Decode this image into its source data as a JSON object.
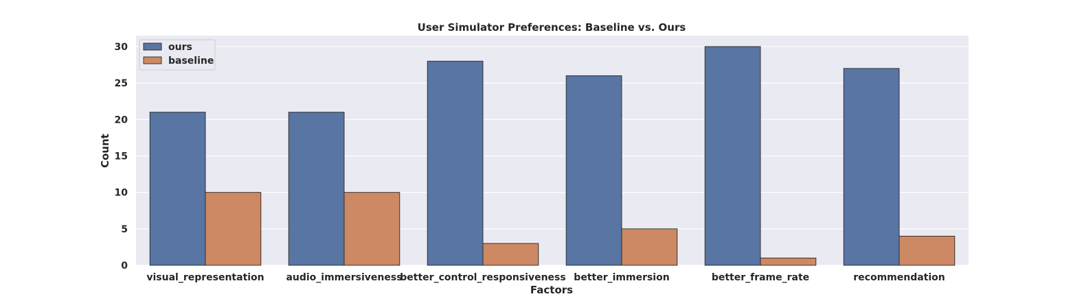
{
  "chart_data": {
    "type": "bar",
    "title": "User Simulator Preferences: Baseline vs. Ours",
    "xlabel": "Factors",
    "ylabel": "Count",
    "categories": [
      "visual_representation",
      "audio_immersiveness",
      "better_control_responsiveness",
      "better_immersion",
      "better_frame_rate",
      "recommendation"
    ],
    "series": [
      {
        "name": "ours",
        "color": "#5975a4",
        "values": [
          21,
          21,
          28,
          26,
          30,
          27
        ]
      },
      {
        "name": "baseline",
        "color": "#cc8963",
        "values": [
          10,
          10,
          3,
          5,
          1,
          4
        ]
      }
    ],
    "ylim": [
      0,
      31.5
    ],
    "yticks": [
      0,
      5,
      10,
      15,
      20,
      25,
      30
    ],
    "grid": true,
    "legend": "top-left",
    "background": "#eaeaf2"
  }
}
